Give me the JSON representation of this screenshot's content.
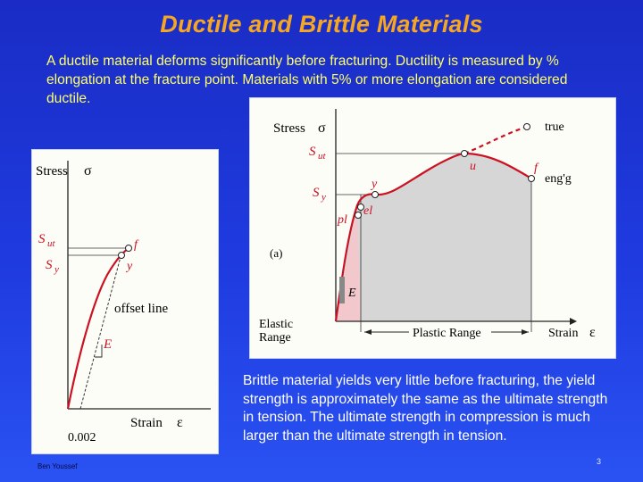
{
  "title": "Ductile and Brittle Materials",
  "intro_text": "A ductile material deforms significantly before fracturing. Ductility is measured by % elongation at the fracture point. Materials with 5% or more elongation are considered ductile.",
  "brittle_text": "Brittle material yields very little before fracturing, the yield strength is approximately the same as the ultimate strength in tension. The ultimate strength in compression is much larger than the ultimate strength in tension.",
  "left_diagram": {
    "y_label": "Stress",
    "y_symbol": "σ",
    "x_label": "Strain",
    "x_symbol": "ε",
    "sut_label": "S",
    "sut_sub": "ut",
    "sy_label": "S",
    "sy_sub": "y",
    "f_label": "f",
    "y_point_label": "y",
    "offset_label": "offset line",
    "e_label": "E",
    "offset_value": "0.002",
    "curve_color": "#cc1122"
  },
  "right_diagram": {
    "y_label": "Stress",
    "y_symbol": "σ",
    "x_label": "Strain",
    "x_symbol": "ε",
    "sut_label": "S",
    "sut_sub": "ut",
    "sy_label": "S",
    "sy_sub": "y",
    "u_label": "u",
    "f_label": "f",
    "y_point_label": "y",
    "el_label": "el",
    "pl_label": "pl",
    "true_label": "true",
    "engg_label": "eng'g",
    "panel_tag": "(a)",
    "e_label": "E",
    "elastic_range_label": "Elastic\nRange",
    "elastic_line1": "Elastic",
    "elastic_line2": "Range",
    "plastic_range_label": "Plastic Range",
    "curve_color": "#cc1122",
    "fill_color": "#d6d6d6"
  },
  "footer_text": "Ben Youssef",
  "page_number": "3"
}
